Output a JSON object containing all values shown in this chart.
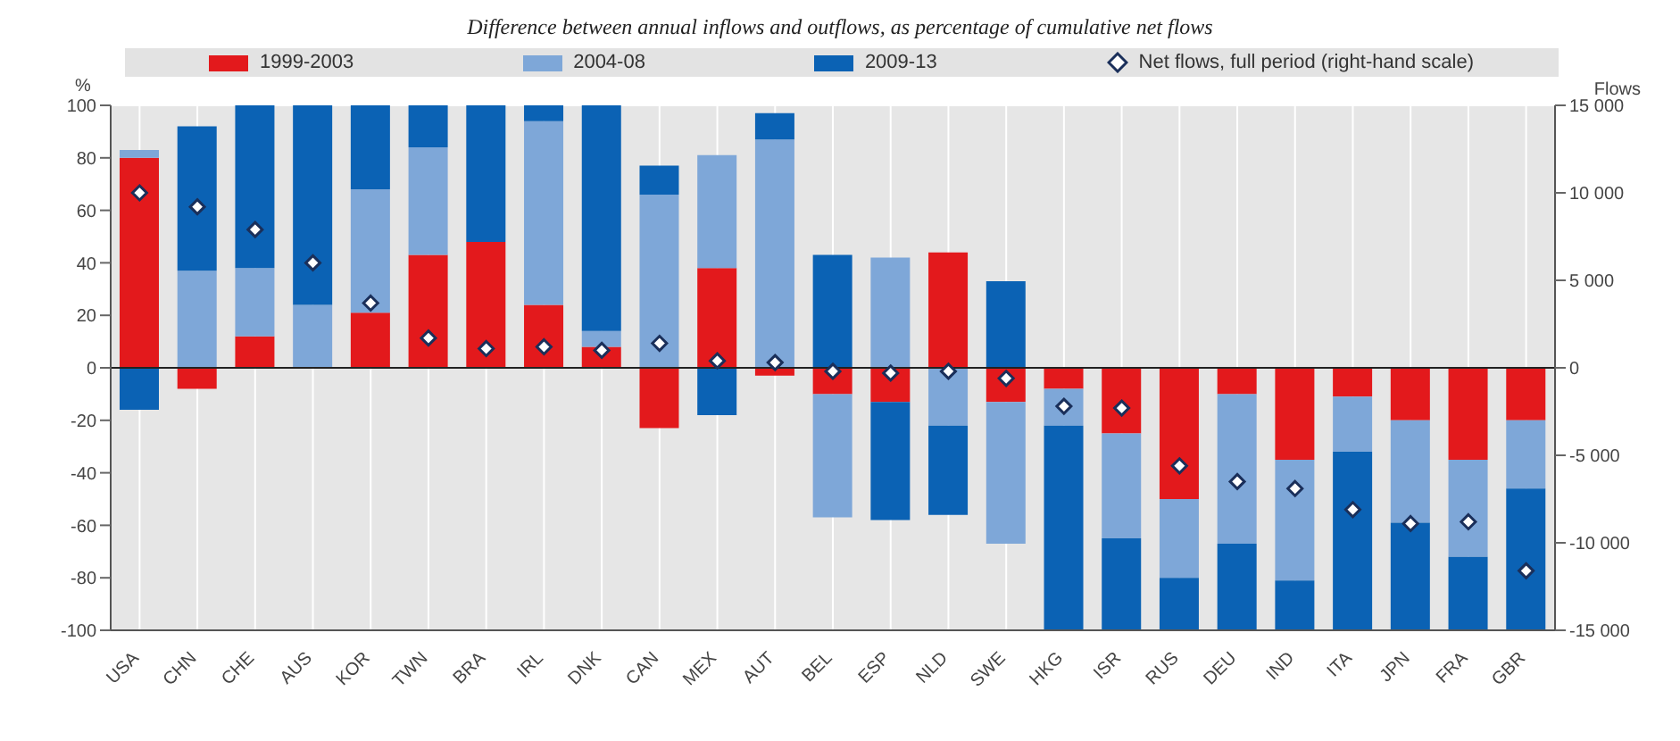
{
  "chart_data": {
    "type": "bar",
    "title": "Difference between annual inflows and outflows, as percentage of cumulative net flows",
    "ylabel": "%",
    "y2label": "Flows",
    "categories": [
      "USA",
      "CHN",
      "CHE",
      "AUS",
      "KOR",
      "TWN",
      "BRA",
      "IRL",
      "DNK",
      "CAN",
      "MEX",
      "AUT",
      "BEL",
      "ESP",
      "NLD",
      "SWE",
      "HKG",
      "ISR",
      "RUS",
      "DEU",
      "IND",
      "ITA",
      "JPN",
      "FRA",
      "GBR"
    ],
    "stacked": true,
    "series": [
      {
        "name": "1999-2003",
        "color": "#e3191c",
        "values": [
          80,
          -8,
          12,
          0,
          21,
          43,
          48,
          24,
          8,
          -23,
          38,
          -3,
          -10,
          -13,
          44,
          -13,
          -8,
          -25,
          -50,
          -10,
          -35,
          -11,
          -20,
          -35,
          -20
        ]
      },
      {
        "name": "2004-08",
        "color": "#7ea7d8",
        "values": [
          3,
          37,
          26,
          24,
          47,
          41,
          0,
          70,
          6,
          66,
          43,
          87,
          -47,
          42,
          -22,
          -54,
          -14,
          -40,
          -30,
          -57,
          -46,
          -21,
          -39,
          -37,
          -26
        ]
      },
      {
        "name": "2009-13",
        "color": "#0b62b4",
        "values": [
          -16,
          55,
          62,
          76,
          32,
          16,
          52,
          6,
          86,
          11,
          -18,
          10,
          43,
          -45,
          -34,
          33,
          -78,
          -35,
          -20,
          -33,
          -19,
          -68,
          -41,
          -28,
          -54
        ]
      },
      {
        "name": "Net flows, full period (right-hand scale)",
        "type": "scatter",
        "axis": "y2",
        "marker": "diamond",
        "color": "#ffffff",
        "values": [
          10000,
          9200,
          7900,
          6000,
          3700,
          1700,
          1100,
          1200,
          1000,
          1400,
          400,
          300,
          -200,
          -300,
          -200,
          -600,
          -2200,
          -2300,
          -5600,
          -6500,
          -6900,
          -8100,
          -8900,
          -8800,
          -11600
        ]
      }
    ],
    "ylim": [
      -100,
      100
    ],
    "yticks": [
      -100,
      -80,
      -60,
      -40,
      -20,
      0,
      20,
      40,
      60,
      80,
      100
    ],
    "y2lim": [
      -15000,
      15000
    ],
    "y2ticks": [
      {
        "value": -15000,
        "label": "-15 000"
      },
      {
        "value": -10000,
        "label": "-10 000"
      },
      {
        "value": -5000,
        "label": "-5 000"
      },
      0,
      {
        "value": 5000,
        "label": "5 000"
      },
      {
        "value": 10000,
        "label": "10 000"
      },
      {
        "value": 15000,
        "label": "15 000"
      }
    ],
    "grid": true,
    "legend": "top"
  }
}
